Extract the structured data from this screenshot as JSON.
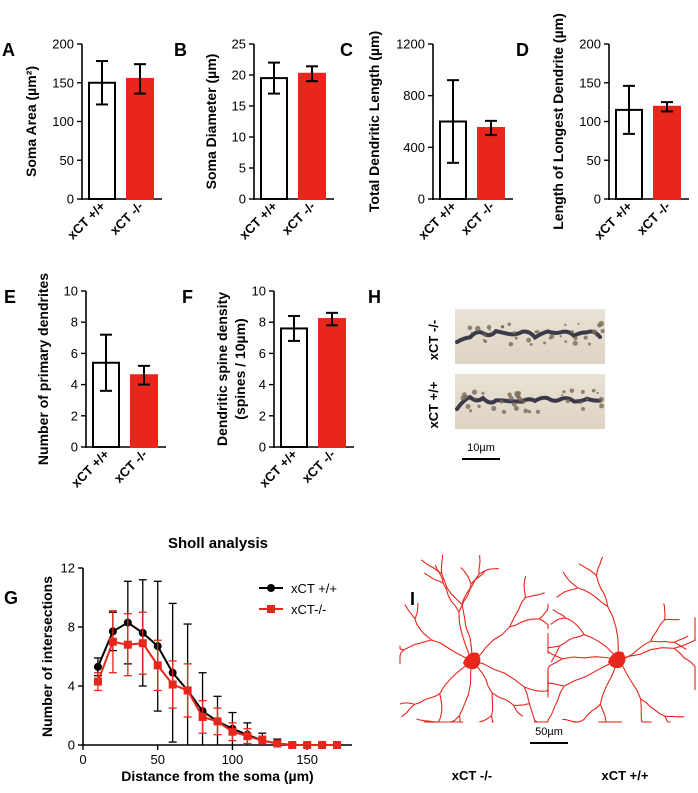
{
  "bar_panels": [
    {
      "id": "A",
      "letter": "A",
      "ylabel": "Soma Area (µm²)",
      "ymax": 200,
      "ticks": [
        0,
        50,
        100,
        150,
        200
      ],
      "categories": [
        "xCT +/+",
        "xCT -/-"
      ],
      "values": [
        150,
        155
      ],
      "errors": [
        28,
        19
      ],
      "colors": [
        "#ffffff",
        "#e8261c"
      ]
    },
    {
      "id": "B",
      "letter": "B",
      "ylabel": "Soma Diameter (µm)",
      "ymax": 25,
      "ticks": [
        0,
        5,
        10,
        15,
        20,
        25
      ],
      "categories": [
        "xCT +/+",
        "xCT -/-"
      ],
      "values": [
        19.5,
        20.2
      ],
      "errors": [
        2.5,
        1.2
      ],
      "colors": [
        "#ffffff",
        "#e8261c"
      ]
    },
    {
      "id": "C",
      "letter": "C",
      "ylabel": "Total Dendritic Length (µm)",
      "ymax": 1200,
      "ticks": [
        0,
        400,
        800,
        1200
      ],
      "categories": [
        "xCT +/+",
        "xCT -/-"
      ],
      "values": [
        600,
        550
      ],
      "errors": [
        320,
        55
      ],
      "colors": [
        "#ffffff",
        "#e8261c"
      ]
    },
    {
      "id": "D",
      "letter": "D",
      "ylabel": "Length of Longest Dendrite (µm)",
      "ymax": 200,
      "ticks": [
        0,
        50,
        100,
        150,
        200
      ],
      "categories": [
        "xCT +/+",
        "xCT -/-"
      ],
      "values": [
        115,
        119
      ],
      "errors": [
        31,
        6
      ],
      "colors": [
        "#ffffff",
        "#e8261c"
      ]
    },
    {
      "id": "E",
      "letter": "E",
      "ylabel": "Number of primary dendrites",
      "ymax": 10,
      "ticks": [
        0,
        2,
        4,
        6,
        8,
        10
      ],
      "categories": [
        "xCT +/+",
        "xCT -/-"
      ],
      "values": [
        5.4,
        4.6
      ],
      "errors": [
        1.8,
        0.6
      ],
      "colors": [
        "#ffffff",
        "#e8261c"
      ]
    },
    {
      "id": "F",
      "letter": "F",
      "ylabel": "Dendritic spine density|(spines / 10µm)",
      "ymax": 10,
      "ticks": [
        0,
        2,
        4,
        6,
        8,
        10
      ],
      "categories": [
        "xCT +/+",
        "xCT -/-"
      ],
      "values": [
        7.6,
        8.2
      ],
      "errors": [
        0.8,
        0.4
      ],
      "colors": [
        "#ffffff",
        "#e8261c"
      ]
    }
  ],
  "chart_data": {
    "type": "line",
    "title": "Sholl analysis",
    "panel_letter": "G",
    "xlabel": "Distance from the soma (µm)",
    "ylabel": "Number of intersections",
    "xlim": [
      0,
      180
    ],
    "ylim": [
      0,
      12
    ],
    "xticks": [
      0,
      50,
      100,
      150
    ],
    "yticks": [
      0,
      4,
      8,
      12
    ],
    "x": [
      10,
      20,
      30,
      40,
      50,
      60,
      70,
      80,
      90,
      100,
      110,
      120,
      130,
      140,
      150,
      160,
      170
    ],
    "series": [
      {
        "name": "xCT +/+",
        "color": "#000000",
        "marker": "circle",
        "values": [
          5.3,
          7.7,
          8.3,
          7.6,
          6.7,
          4.9,
          3.7,
          2.3,
          1.6,
          1.1,
          0.7,
          0.3,
          0.1,
          0.0,
          0.0,
          0.0,
          0.0
        ],
        "errors": [
          0.6,
          1.3,
          2.8,
          3.6,
          4.4,
          4.7,
          4.5,
          2.6,
          1.7,
          1.1,
          0.8,
          0.5,
          0.3,
          0.1,
          0.1,
          0.1,
          0.1
        ]
      },
      {
        "name": "xCT-/-",
        "color": "#e8261c",
        "marker": "square",
        "values": [
          4.3,
          7.0,
          6.8,
          6.9,
          5.4,
          4.1,
          3.7,
          1.9,
          1.6,
          0.9,
          0.6,
          0.3,
          0.1,
          0.0,
          0.0,
          0.0,
          0.0
        ],
        "errors": [
          0.6,
          2.1,
          2.1,
          2.1,
          1.7,
          1.6,
          1.8,
          1.1,
          0.9,
          0.6,
          0.5,
          0.3,
          0.2,
          0.1,
          0.1,
          0.1,
          0.1
        ]
      }
    ]
  },
  "panel_h": {
    "letter": "H",
    "label_top": "xCT -/-",
    "label_bottom": "xCT +/+",
    "scalebar": "10µm"
  },
  "panel_i": {
    "letter": "I",
    "label_left": "xCT -/-",
    "label_right": "xCT +/+",
    "scalebar": "50µm",
    "color": "#e8261c"
  }
}
